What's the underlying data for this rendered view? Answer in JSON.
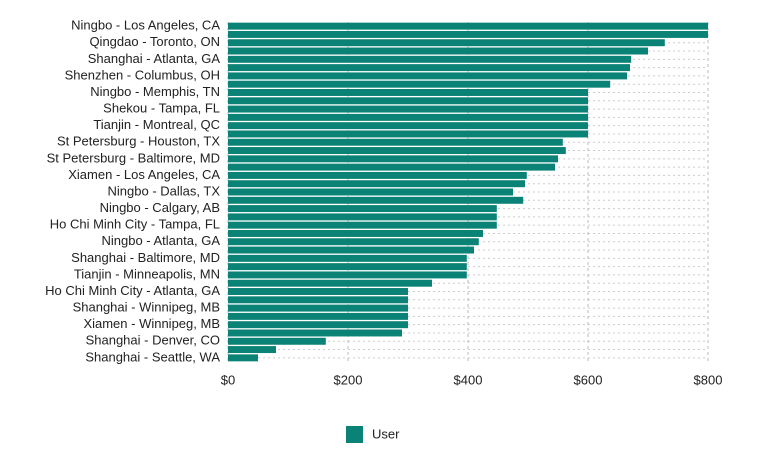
{
  "chart_data": {
    "type": "bar",
    "orientation": "horizontal",
    "categories": [
      "Ningbo - Los Angeles, CA",
      null,
      "Qingdao - Toronto, ON",
      null,
      "Shanghai - Atlanta, GA",
      null,
      "Shenzhen - Columbus, OH",
      null,
      "Ningbo - Memphis, TN",
      null,
      "Shekou - Tampa, FL",
      null,
      "Tianjin - Montreal, QC",
      null,
      "St Petersburg - Houston, TX",
      null,
      "St Petersburg - Baltimore, MD",
      null,
      "Xiamen - Los Angeles, CA",
      null,
      "Ningbo - Dallas, TX",
      null,
      "Ningbo - Calgary, AB",
      null,
      "Ho Chi Minh City - Tampa, FL",
      null,
      "Ningbo - Atlanta, GA",
      null,
      "Shanghai - Baltimore, MD",
      null,
      "Tianjin - Minneapolis, MN",
      null,
      "Ho Chi Minh City - Atlanta, GA",
      null,
      "Shanghai - Winnipeg, MB",
      null,
      "Xiamen - Winnipeg, MB",
      null,
      "Shanghai - Denver, CO",
      null,
      "Shanghai - Seattle, WA"
    ],
    "series": [
      {
        "name": "User",
        "color": "#0b8276",
        "values": [
          800,
          800,
          728,
          700,
          672,
          670,
          665,
          637,
          600,
          600,
          600,
          600,
          600,
          600,
          558,
          563,
          550,
          545,
          498,
          495,
          475,
          492,
          448,
          448,
          448,
          425,
          418,
          410,
          398,
          398,
          398,
          340,
          300,
          300,
          300,
          300,
          300,
          290,
          163,
          80,
          50
        ]
      }
    ],
    "xlim": [
      0,
      800
    ],
    "xticks": [
      {
        "value": 0,
        "label": "$0"
      },
      {
        "value": 200,
        "label": "$200"
      },
      {
        "value": 400,
        "label": "$400"
      },
      {
        "value": 600,
        "label": "$600"
      },
      {
        "value": 800,
        "label": "$800"
      }
    ],
    "grid": true,
    "legend": "bottom"
  }
}
